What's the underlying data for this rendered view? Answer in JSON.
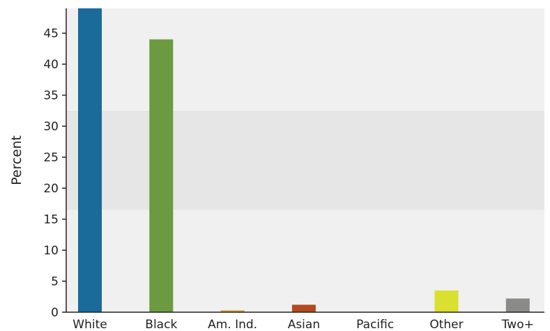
{
  "chart_data": {
    "type": "bar",
    "title": "",
    "xlabel": "",
    "ylabel": "Percent",
    "ylim": [
      0,
      49
    ],
    "yticks": [
      0,
      5,
      10,
      15,
      20,
      25,
      30,
      35,
      40,
      45
    ],
    "grid": false,
    "legend": "none",
    "categories": [
      "White",
      "Black",
      "Am. Ind.",
      "Asian",
      "Pacific",
      "Other",
      "Two+"
    ],
    "values": [
      49,
      44,
      0.3,
      1.2,
      0,
      3.5,
      2.2
    ],
    "colors": [
      "#1a6a9a",
      "#6c9a41",
      "#d8a23a",
      "#b34a1e",
      "#7a7a7a",
      "#d9e030",
      "#8a8a86"
    ],
    "background_bands": [
      {
        "from": 0,
        "to": 16.5,
        "color": "#f0f0f0"
      },
      {
        "from": 16.5,
        "to": 32.5,
        "color": "#e6e6e6"
      },
      {
        "from": 32.5,
        "to": 49,
        "color": "#f0f0f0"
      }
    ]
  }
}
